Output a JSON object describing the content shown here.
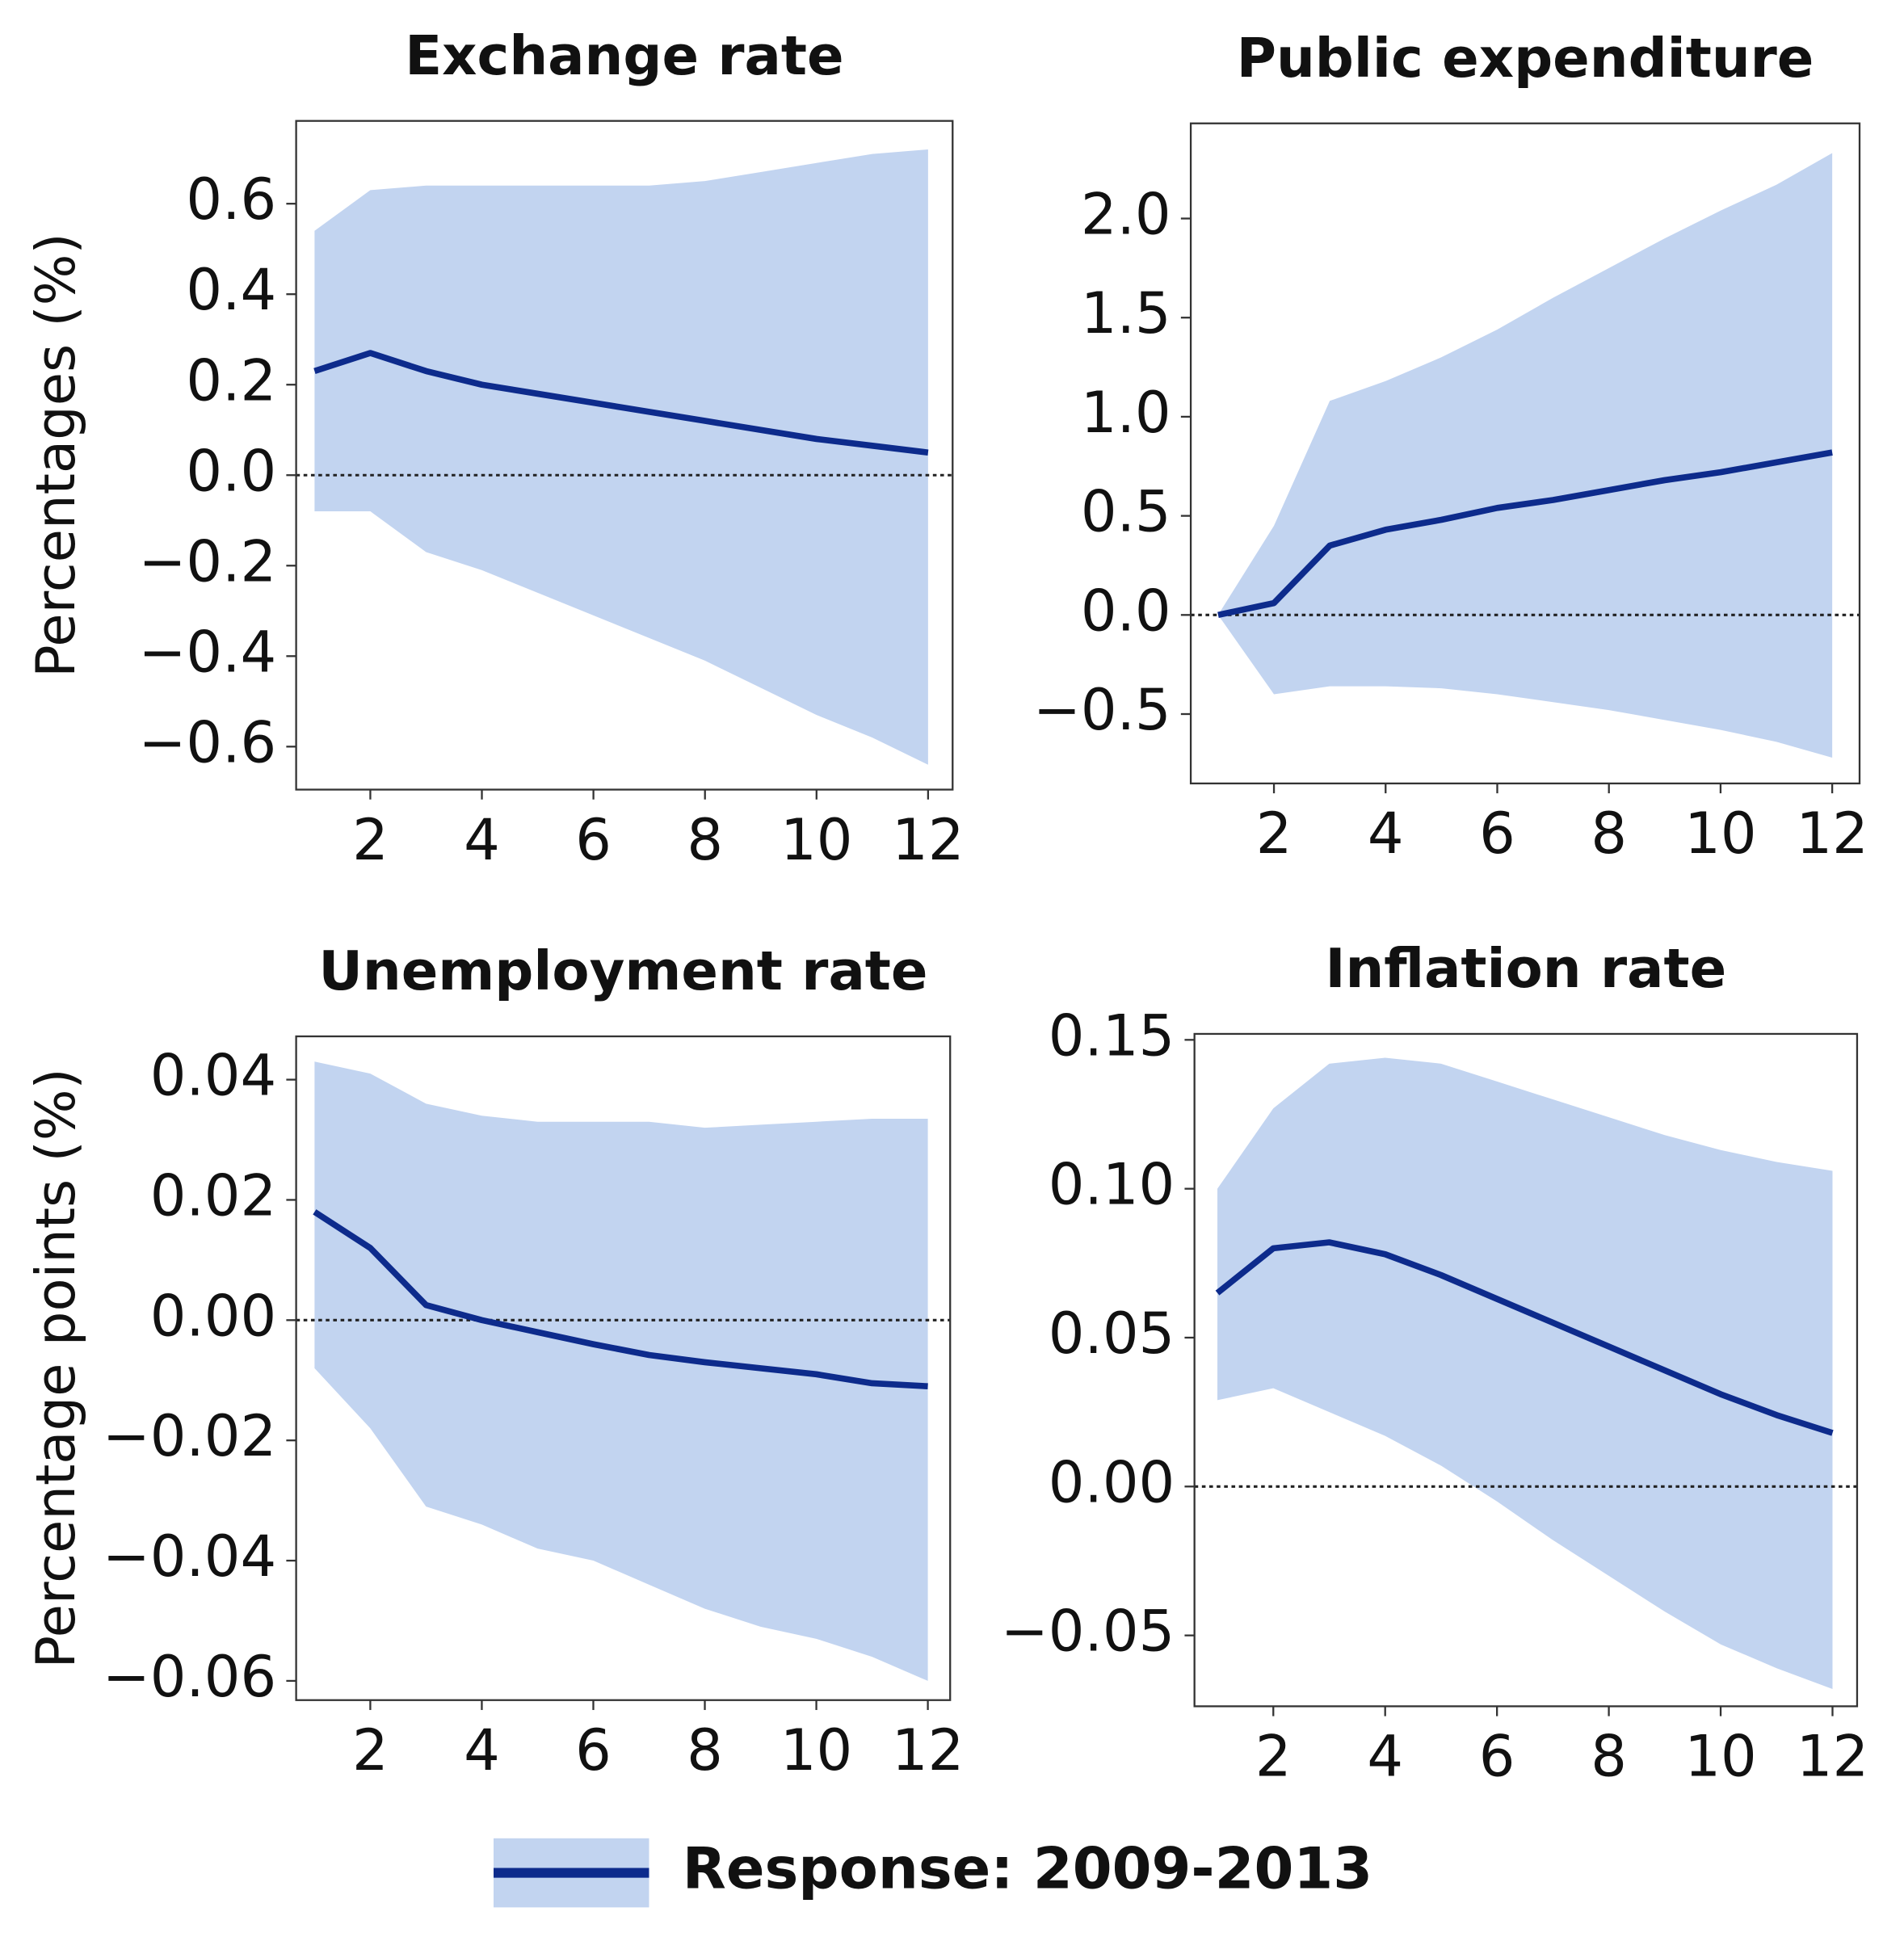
{
  "chart_data": [
    {
      "type": "line",
      "title": "Exchange rate",
      "ylabel": "Percentages (%)",
      "x": [
        1,
        2,
        3,
        4,
        5,
        6,
        7,
        8,
        9,
        10,
        11,
        12
      ],
      "series": [
        {
          "name": "Response: 2009-2013",
          "color": "#0d2b8c",
          "band_color": "#c2d4f0",
          "values": [
            0.23,
            0.27,
            0.23,
            0.2,
            0.18,
            0.16,
            0.14,
            0.12,
            0.1,
            0.08,
            0.065,
            0.05
          ],
          "upper": [
            0.54,
            0.63,
            0.64,
            0.64,
            0.64,
            0.64,
            0.64,
            0.65,
            0.67,
            0.69,
            0.71,
            0.72
          ],
          "lower": [
            -0.08,
            -0.08,
            -0.17,
            -0.21,
            -0.26,
            -0.31,
            -0.36,
            -0.41,
            -0.47,
            -0.53,
            -0.58,
            -0.64
          ]
        }
      ],
      "xlim": [
        0.67,
        12.44
      ],
      "ylim": [
        -0.695,
        0.783
      ],
      "xticks": [
        2,
        4,
        6,
        8,
        10,
        12
      ],
      "yticks": [
        {
          "value": -0.6,
          "label": "−0.6"
        },
        {
          "value": -0.4,
          "label": "−0.4"
        },
        {
          "value": -0.2,
          "label": "−0.2"
        },
        {
          "value": 0,
          "label": "0.0"
        },
        0.2,
        0.4,
        0.6
      ],
      "hline": 0
    },
    {
      "type": "line",
      "title": "Public expenditure",
      "x": [
        1,
        2,
        3,
        4,
        5,
        6,
        7,
        8,
        9,
        10,
        11,
        12
      ],
      "series": [
        {
          "color": "#0d2b8c",
          "band_color": "#c2d4f0",
          "values": [
            0,
            0.06,
            0.35,
            0.43,
            0.48,
            0.54,
            0.58,
            0.63,
            0.68,
            0.72,
            0.77,
            0.82
          ],
          "upper": [
            0,
            0.45,
            1.08,
            1.18,
            1.3,
            1.44,
            1.6,
            1.75,
            1.9,
            2.04,
            2.17,
            2.33
          ],
          "lower": [
            0,
            -0.4,
            -0.36,
            -0.36,
            -0.37,
            -0.4,
            -0.44,
            -0.48,
            -0.53,
            -0.58,
            -0.64,
            -0.72
          ]
        }
      ],
      "xlim": [
        0.51,
        12.49
      ],
      "ylim": [
        -0.85,
        2.48
      ],
      "xticks": [
        2,
        4,
        6,
        8,
        10,
        12
      ],
      "yticks": [
        {
          "value": -0.5,
          "label": "−0.5"
        },
        {
          "value": 0,
          "label": "0.0"
        },
        0.5,
        {
          "value": 1,
          "label": "1.0"
        },
        1.5,
        {
          "value": 2,
          "label": "2.0"
        }
      ],
      "hline": 0
    },
    {
      "type": "line",
      "title": "Unemployment rate",
      "ylabel": "Percentage points  (%)",
      "x": [
        1,
        2,
        3,
        4,
        5,
        6,
        7,
        8,
        9,
        10,
        11,
        12
      ],
      "series": [
        {
          "color": "#0d2b8c",
          "band_color": "#c2d4f0",
          "values": [
            0.018,
            0.012,
            0.0025,
            0,
            -0.002,
            -0.004,
            -0.0058,
            -0.007,
            -0.008,
            -0.009,
            -0.0105,
            -0.011
          ],
          "upper": [
            0.043,
            0.041,
            0.036,
            0.034,
            0.033,
            0.033,
            0.033,
            0.032,
            0.0325,
            0.033,
            0.0335,
            0.0335
          ],
          "lower": [
            -0.008,
            -0.018,
            -0.031,
            -0.034,
            -0.038,
            -0.04,
            -0.044,
            -0.048,
            -0.051,
            -0.053,
            -0.056,
            -0.06
          ]
        }
      ],
      "xlim": [
        0.67,
        12.4
      ],
      "ylim": [
        -0.0632,
        0.0472
      ],
      "xticks": [
        2,
        4,
        6,
        8,
        10,
        12
      ],
      "yticks": [
        {
          "value": -0.06,
          "label": "−0.06"
        },
        {
          "value": -0.04,
          "label": "−0.04"
        },
        {
          "value": -0.02,
          "label": "−0.02"
        },
        {
          "value": 0,
          "label": "0.00"
        },
        0.02,
        0.04
      ],
      "hline": 0
    },
    {
      "type": "line",
      "title": "Inflation rate",
      "x": [
        1,
        2,
        3,
        4,
        5,
        6,
        7,
        8,
        9,
        10,
        11,
        12
      ],
      "series": [
        {
          "color": "#0d2b8c",
          "band_color": "#c2d4f0",
          "values": [
            0.065,
            0.08,
            0.082,
            0.078,
            0.071,
            0.063,
            0.055,
            0.047,
            0.039,
            0.031,
            0.024,
            0.018
          ],
          "upper": [
            0.1,
            0.127,
            0.142,
            0.144,
            0.142,
            0.136,
            0.13,
            0.124,
            0.118,
            0.113,
            0.109,
            0.106
          ],
          "lower": [
            0.029,
            0.033,
            0.025,
            0.017,
            0.007,
            -0.005,
            -0.018,
            -0.03,
            -0.042,
            -0.053,
            -0.061,
            -0.068
          ]
        }
      ],
      "xlim": [
        0.59,
        12.44
      ],
      "ylim": [
        -0.0738,
        0.152
      ],
      "xticks": [
        2,
        4,
        6,
        8,
        10,
        12
      ],
      "yticks": [
        {
          "value": -0.05,
          "label": "−0.05"
        },
        {
          "value": 0,
          "label": "0.00"
        },
        0.05,
        {
          "value": 0.1,
          "label": "0.10"
        },
        0.15
      ],
      "hline": 0
    }
  ]
}
